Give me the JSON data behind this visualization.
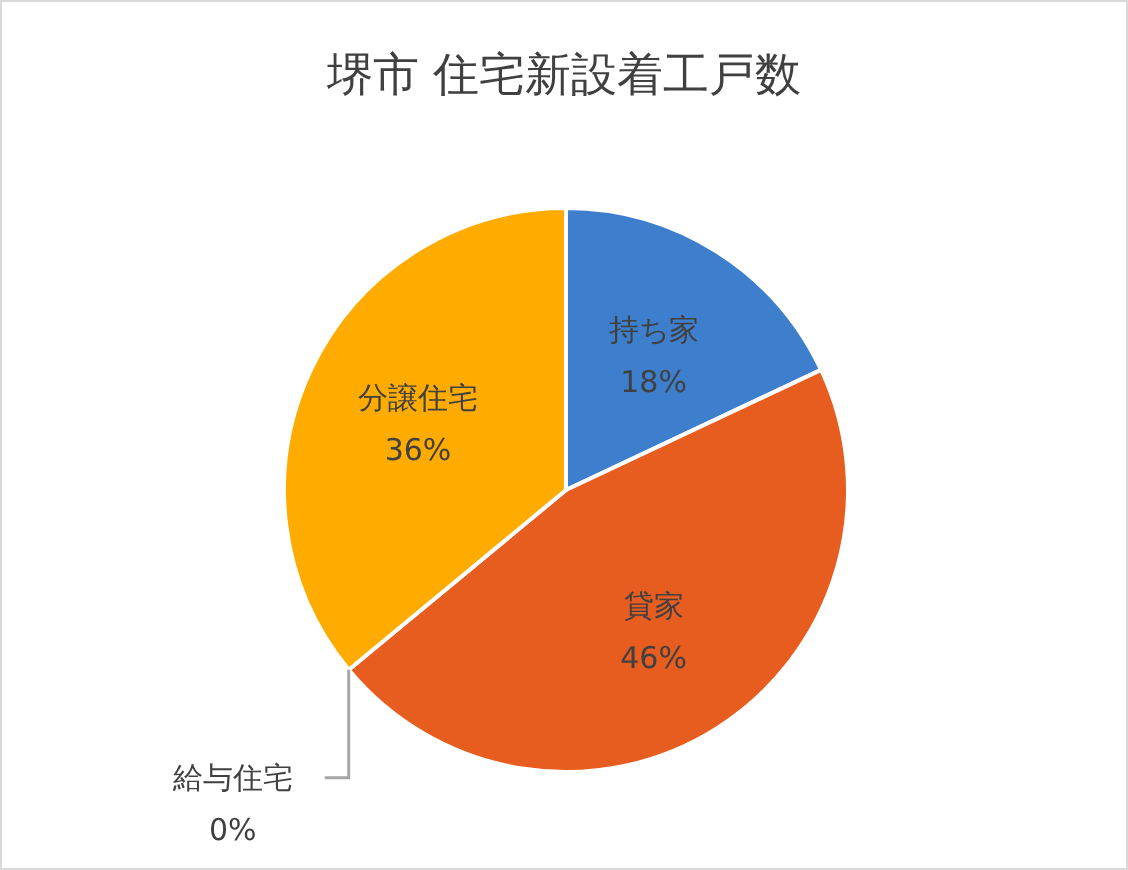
{
  "chart_data": {
    "type": "pie",
    "title": "堺市 住宅新設着工戸数",
    "categories": [
      "持ち家",
      "貸家",
      "給与住宅",
      "分譲住宅"
    ],
    "values": [
      18,
      46,
      0,
      36
    ],
    "value_labels": [
      "18%",
      "46%",
      "0%",
      "36%"
    ],
    "colors": [
      "#3e7fcd",
      "#e75c1f",
      null,
      "#ffab00"
    ]
  }
}
